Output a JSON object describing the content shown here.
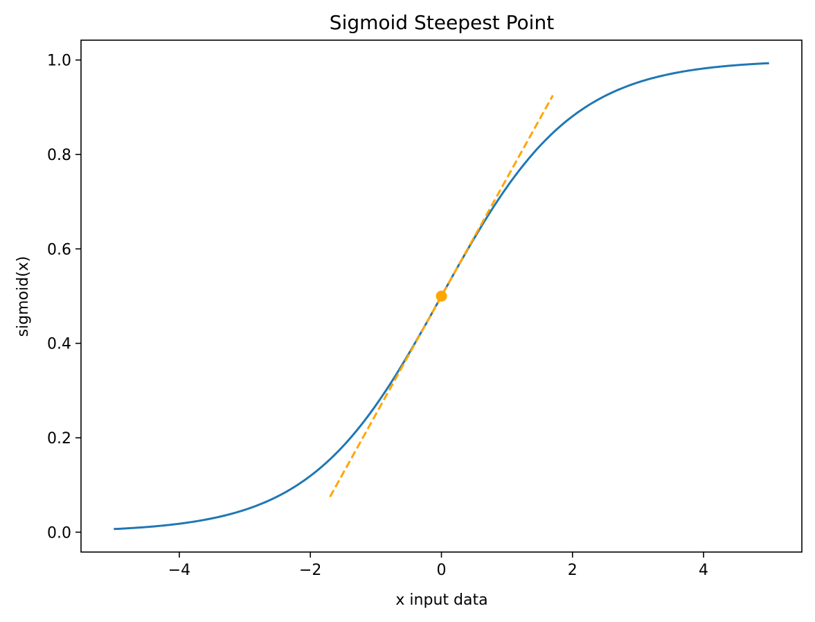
{
  "chart_data": {
    "type": "line",
    "title": "Sigmoid Steepest Point",
    "xlabel": "x input data",
    "ylabel": "sigmoid(x)",
    "xlim": [
      -5.5,
      5.5
    ],
    "ylim": [
      -0.042,
      1.042
    ],
    "xticks": [
      -4,
      -2,
      0,
      2,
      4
    ],
    "xtick_labels": [
      "−4",
      "−2",
      "0",
      "2",
      "4"
    ],
    "yticks": [
      0.0,
      0.2,
      0.4,
      0.6,
      0.8,
      1.0
    ],
    "ytick_labels": [
      "0.0",
      "0.2",
      "0.4",
      "0.6",
      "0.8",
      "1.0"
    ],
    "grid": false,
    "series": [
      {
        "kind": "curve",
        "function": "sigmoid",
        "x_range": [
          -5,
          5
        ],
        "color": "#1f77b4",
        "line_style": "solid"
      },
      {
        "kind": "tangent",
        "x": [
          -1.7,
          1.7
        ],
        "y": [
          0.075,
          0.925
        ],
        "color": "#ffa500",
        "line_style": "dashed"
      },
      {
        "kind": "point",
        "x": [
          0
        ],
        "y": [
          0.5
        ],
        "color": "#ffa500"
      }
    ]
  }
}
